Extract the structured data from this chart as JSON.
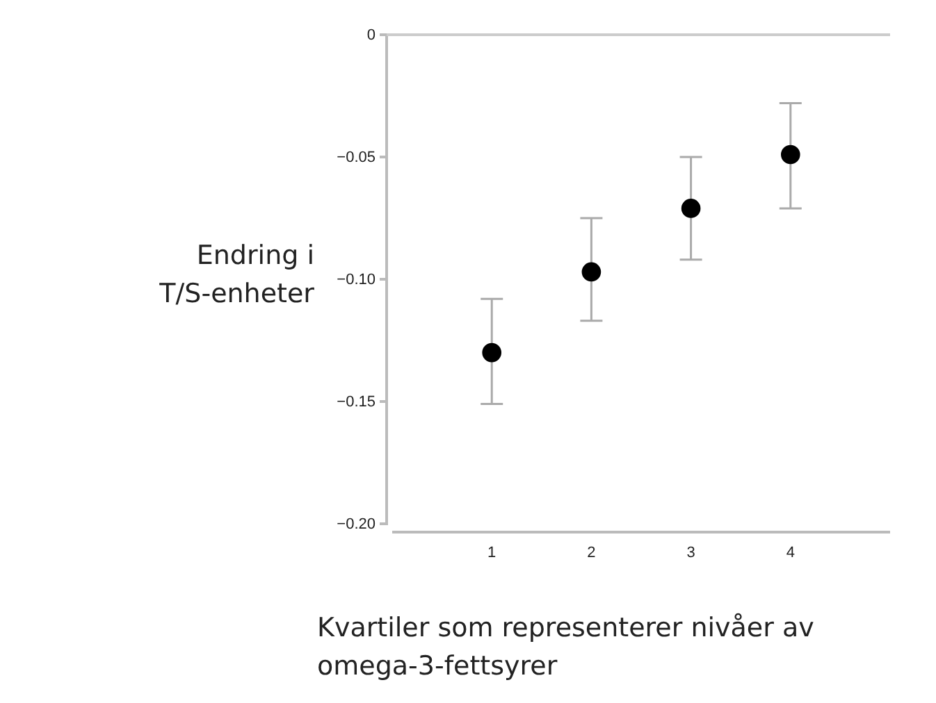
{
  "chart_data": {
    "type": "scatter",
    "xlabel": "Kvartiler som representerer nivåer av omega-3-fettsyrer",
    "ylabel": "Endring i T/S-enheter",
    "x": [
      1,
      2,
      3,
      4
    ],
    "values": [
      -0.13,
      -0.097,
      -0.071,
      -0.049
    ],
    "errors": [
      [
        -0.151,
        -0.108
      ],
      [
        -0.117,
        -0.075
      ],
      [
        -0.092,
        -0.05
      ],
      [
        -0.071,
        -0.028
      ]
    ],
    "color": "#000000",
    "marker": "circle",
    "xlim": [
      0,
      5
    ],
    "xticks": [
      1,
      2,
      3,
      4
    ],
    "ylim": [
      -0.2,
      0
    ],
    "yticks": [
      {
        "value": 0,
        "label": "0"
      },
      {
        "value": -0.05,
        "label": "−0.05"
      },
      {
        "value": -0.1,
        "label": "−0.10"
      },
      {
        "value": -0.15,
        "label": "−0.15"
      },
      {
        "value": -0.2,
        "label": "−0.20"
      }
    ],
    "ref_lines": [
      {
        "axis": "y",
        "value": 0,
        "color": "#cccccc"
      }
    ],
    "grid": false
  }
}
